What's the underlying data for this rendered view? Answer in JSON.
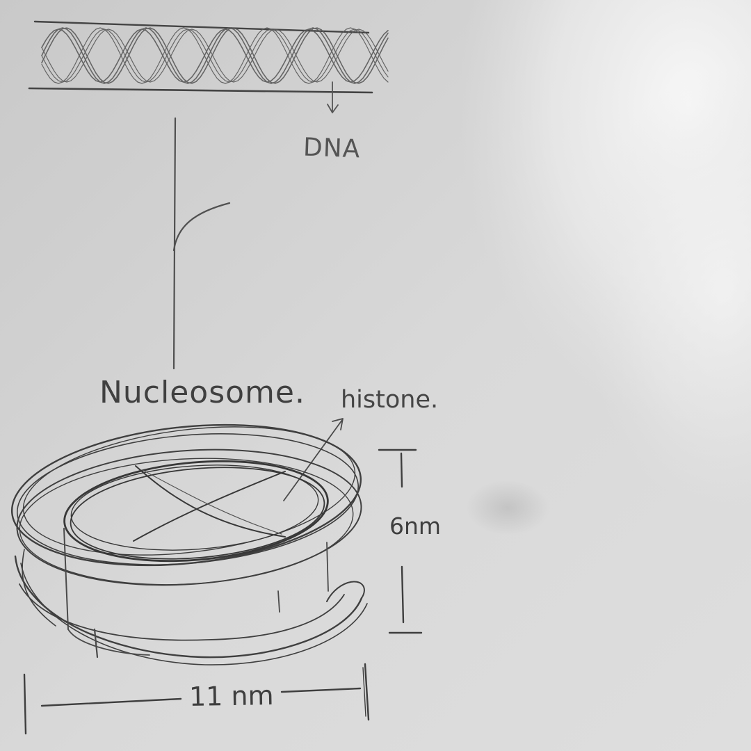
{
  "labels": {
    "dna": "DNA",
    "nucleosome": "Nucleosome.",
    "histone": "histone.",
    "height": "6nm",
    "width": "11 nm"
  },
  "colors": {
    "paper": "#d8d8d8",
    "paper_shadow": "#b9b9b9",
    "paper_bright": "#f2f2f2",
    "pencil": "#4a4a4a"
  }
}
